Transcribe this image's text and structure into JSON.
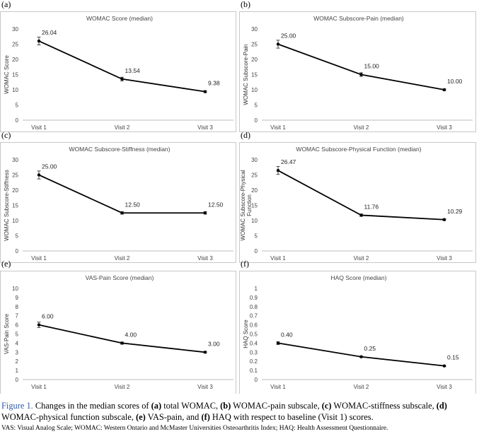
{
  "panel_labels": [
    "(a)",
    "(b)",
    "(c)",
    "(d)",
    "(e)",
    "(f)"
  ],
  "chart_data": [
    {
      "type": "line",
      "title": "WOMAC Score (median)",
      "ylabel": "WOMAC Score",
      "xlabel": "",
      "categories": [
        "Visit 1",
        "Visit 2",
        "Visit 3"
      ],
      "values": [
        26.04,
        13.54,
        9.38
      ],
      "value_labels": [
        "26.04",
        "13.54",
        "9.38"
      ],
      "error": [
        1.3,
        0.6,
        0.3
      ],
      "ylim": [
        0,
        30
      ],
      "yticks": [
        "0",
        "5",
        "10",
        "15",
        "20",
        "25",
        "30"
      ],
      "grid": false
    },
    {
      "type": "line",
      "title": "WOMAC Subscore-Pain (median)",
      "ylabel": "WOMAC Subscore-Pain",
      "xlabel": "",
      "categories": [
        "Visit 1",
        "Visit 2",
        "Visit 3"
      ],
      "values": [
        25.0,
        15.0,
        10.0
      ],
      "value_labels": [
        "25.00",
        "15.00",
        "10.00"
      ],
      "error": [
        1.3,
        0.6,
        0.3
      ],
      "ylim": [
        0,
        30
      ],
      "yticks": [
        "0",
        "5",
        "10",
        "15",
        "20",
        "25",
        "30"
      ],
      "grid": false
    },
    {
      "type": "line",
      "title": "WOMAC Subscore-Stiffness (median)",
      "ylabel": "WOMAC Subscore-Stiffness",
      "xlabel": "",
      "categories": [
        "Visit 1",
        "Visit 2",
        "Visit 3"
      ],
      "values": [
        25.0,
        12.5,
        12.5
      ],
      "value_labels": [
        "25.00",
        "12.50",
        "12.50"
      ],
      "error": [
        1.3,
        0.4,
        0.4
      ],
      "ylim": [
        0,
        30
      ],
      "yticks": [
        "0",
        "5",
        "10",
        "15",
        "20",
        "25",
        "30"
      ],
      "grid": false
    },
    {
      "type": "line",
      "title": "WOMAC Subscore-Physical Function (median)",
      "ylabel": [
        "WOMAC Subscore-Physical",
        "Function"
      ],
      "xlabel": "",
      "categories": [
        "Visit 1",
        "Visit 2",
        "Visit 3"
      ],
      "values": [
        26.47,
        11.76,
        10.29
      ],
      "value_labels": [
        "26.47",
        "11.76",
        "10.29"
      ],
      "error": [
        1.3,
        0.4,
        0.3
      ],
      "ylim": [
        0,
        30
      ],
      "yticks": [
        "0",
        "5",
        "10",
        "15",
        "20",
        "25",
        "30"
      ],
      "grid": false
    },
    {
      "type": "line",
      "title": "VAS-Pain Score (median)",
      "ylabel": "VAS-Pain Score",
      "xlabel": "",
      "categories": [
        "Visit 1",
        "Visit 2",
        "Visit 3"
      ],
      "values": [
        6.0,
        4.0,
        3.0
      ],
      "value_labels": [
        "6.00",
        "4.00",
        "3.00"
      ],
      "error": [
        0.3,
        0.12,
        0.08
      ],
      "ylim": [
        0,
        10
      ],
      "yticks": [
        "0",
        "1",
        "2",
        "3",
        "4",
        "5",
        "6",
        "7",
        "8",
        "9",
        "10"
      ],
      "grid": false
    },
    {
      "type": "line",
      "title": "HAQ Score (median)",
      "ylabel": "HAQ Score",
      "xlabel": "",
      "categories": [
        "Visit 1",
        "Visit 2",
        "Visit 3"
      ],
      "values": [
        0.4,
        0.25,
        0.15
      ],
      "value_labels": [
        "0.40",
        "0.25",
        "0.15"
      ],
      "error": [
        0.015,
        0.008,
        0.005
      ],
      "ylim": [
        0,
        1
      ],
      "yticks": [
        "0",
        "0.1",
        "0.2",
        "0.3",
        "0.4",
        "0.5",
        "0.6",
        "0.7",
        "0.8",
        "0.9",
        "1"
      ],
      "grid": false
    }
  ],
  "caption": {
    "figure_label": "Figure 1.",
    "text": [
      {
        "t": " Changes in the median scores of ",
        "b": false
      },
      {
        "t": "(a)",
        "b": true
      },
      {
        "t": " total WOMAC, ",
        "b": false
      },
      {
        "t": "(b)",
        "b": true
      },
      {
        "t": " WOMAC-pain subscale, ",
        "b": false
      },
      {
        "t": "(c)",
        "b": true
      },
      {
        "t": " WOMAC-stiffness subscale, ",
        "b": false
      },
      {
        "t": "(d)",
        "b": true
      },
      {
        "t": " WOMAC-physical function subscale, ",
        "b": false
      },
      {
        "t": "(e)",
        "b": true
      },
      {
        "t": " VAS-pain, and ",
        "b": false
      },
      {
        "t": "(f)",
        "b": true
      },
      {
        "t": " HAQ with respect to baseline (Visit 1) scores.",
        "b": false
      }
    ]
  },
  "footnote": "VAS: Visual Analog Scale; WOMAC: Western Ontario and McMaster Universities Osteoarthritis Index; HAQ: Health Assessment Questionnaire."
}
